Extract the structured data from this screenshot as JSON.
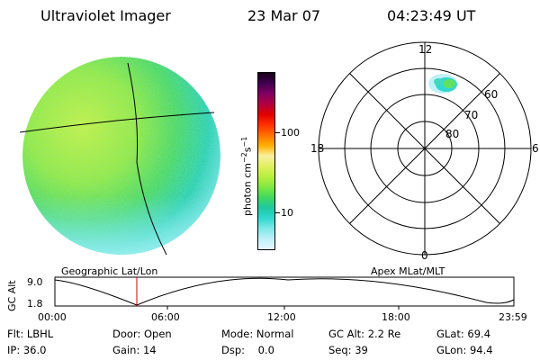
{
  "header": {
    "instrument": "Ultraviolet Imager",
    "date": "23 Mar 07",
    "time": "04:23:49 UT"
  },
  "colorbar": {
    "label": "photon cm-2s-1",
    "ticks": [
      "100",
      "10"
    ],
    "colors": [
      "#e8f8ff",
      "#c0f0f8",
      "#80e8e8",
      "#30d8d0",
      "#20c8a0",
      "#40d860",
      "#80e840",
      "#b8f040",
      "#e0f060",
      "#f8f0a0",
      "#ffb000",
      "#ff7000",
      "#ff3000",
      "#e00000",
      "#b00040",
      "#800060",
      "#400050",
      "#180018"
    ]
  },
  "geo_panel": {
    "label": "Geographic Lat/Lon"
  },
  "polar_panel": {
    "label": "Apex MLat/MLT",
    "mlt_labels": {
      "top": "12",
      "left": "18",
      "right": "6",
      "bottom": "0"
    },
    "lat_labels": [
      "60",
      "70",
      "80"
    ]
  },
  "timeline": {
    "ylabel": "GC Alt",
    "y_ticks": [
      "9.0",
      "1.8"
    ],
    "x_ticks": [
      "00:00",
      "06:00",
      "12:00",
      "18:00",
      "23:59"
    ],
    "current_time": "04:23:49"
  },
  "info": {
    "row1": [
      "Flt: LBHL",
      "Door: Open",
      "Mode: Normal",
      "GC Alt: 2.2 Re",
      "GLat: 69.4"
    ],
    "row2": [
      "IP: 36.0",
      "Gain: 14",
      "Dsp:    0.0",
      "Seq: 39",
      "GLon: 94.4"
    ]
  }
}
